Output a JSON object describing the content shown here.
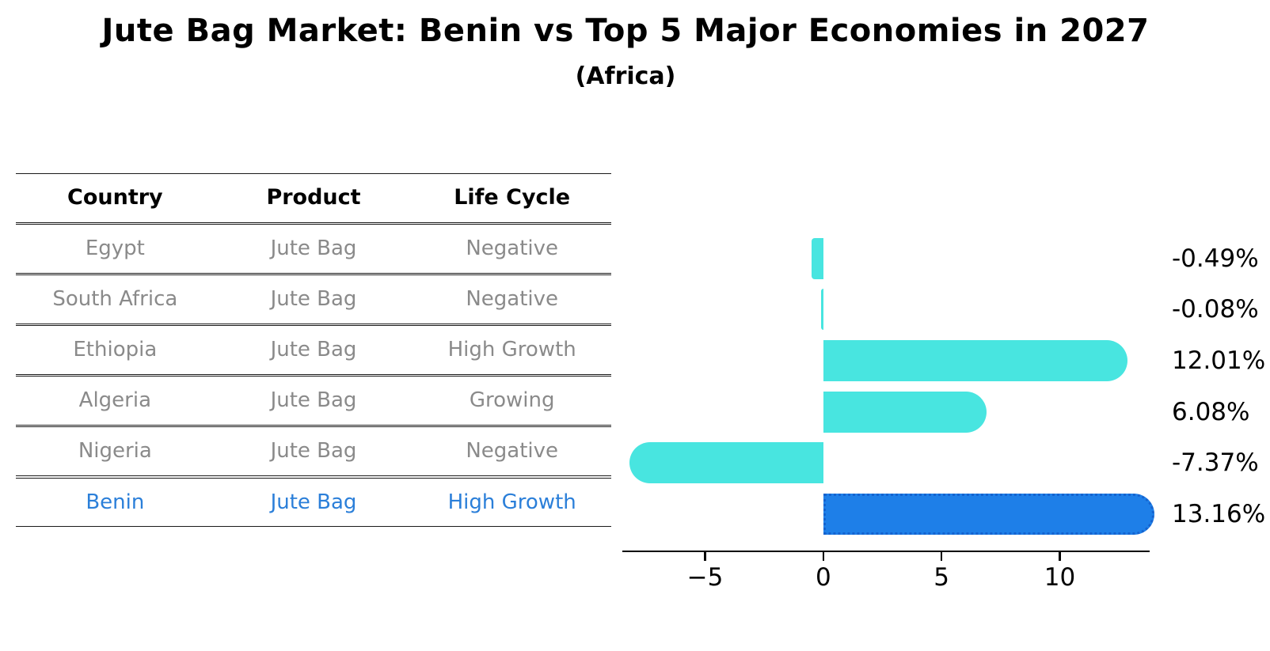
{
  "title": "Jute Bag Market: Benin vs Top 5 Major Economies in 2027",
  "subtitle": "(Africa)",
  "table": {
    "headers": [
      "Country",
      "Product",
      "Life Cycle"
    ],
    "rows": [
      {
        "country": "Egypt",
        "product": "Jute Bag",
        "life_cycle": "Negative",
        "highlight": false
      },
      {
        "country": "South Africa",
        "product": "Jute Bag",
        "life_cycle": "Negative",
        "highlight": false
      },
      {
        "country": "Ethiopia",
        "product": "Jute Bag",
        "life_cycle": "High Growth",
        "highlight": false
      },
      {
        "country": "Algeria",
        "product": "Jute Bag",
        "life_cycle": "Growing",
        "highlight": false
      },
      {
        "country": "Nigeria",
        "product": "Jute Bag",
        "life_cycle": "Negative",
        "highlight": false
      },
      {
        "country": "Benin",
        "product": "Jute Bag",
        "life_cycle": "High Growth",
        "highlight": true
      }
    ]
  },
  "chart_data": {
    "type": "bar",
    "orientation": "horizontal",
    "title": "Jute Bag Market: Benin vs Top 5 Major Economies in 2027",
    "subtitle": "(Africa)",
    "categories": [
      "Egypt",
      "South Africa",
      "Ethiopia",
      "Algeria",
      "Nigeria",
      "Benin"
    ],
    "values": [
      -0.49,
      -0.08,
      12.01,
      6.08,
      -7.37,
      13.16
    ],
    "value_labels": [
      "-0.49%",
      "-0.08%",
      "12.01%",
      "6.08%",
      "-7.37%",
      "13.16%"
    ],
    "unit": "%",
    "x_ticks": [
      -5,
      0,
      5,
      10
    ],
    "x_tick_labels": [
      "−5",
      "0",
      "5",
      "10"
    ],
    "xlim": [
      -8.5,
      13.8
    ],
    "grid": false,
    "legend": "none",
    "bar_color": "#48e5e0",
    "highlight_color": "#1e7fe8",
    "highlight_border_color": "#1563cf",
    "highlight_index": 5,
    "axis_color": "#000000"
  }
}
